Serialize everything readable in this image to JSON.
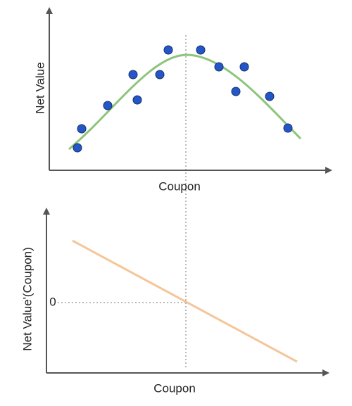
{
  "top": {
    "y_label": "Net Value",
    "x_label": "Coupon"
  },
  "bottom": {
    "y_label": "Net Value'(Coupon)",
    "x_label": "Coupon",
    "zero_label": "0"
  }
}
